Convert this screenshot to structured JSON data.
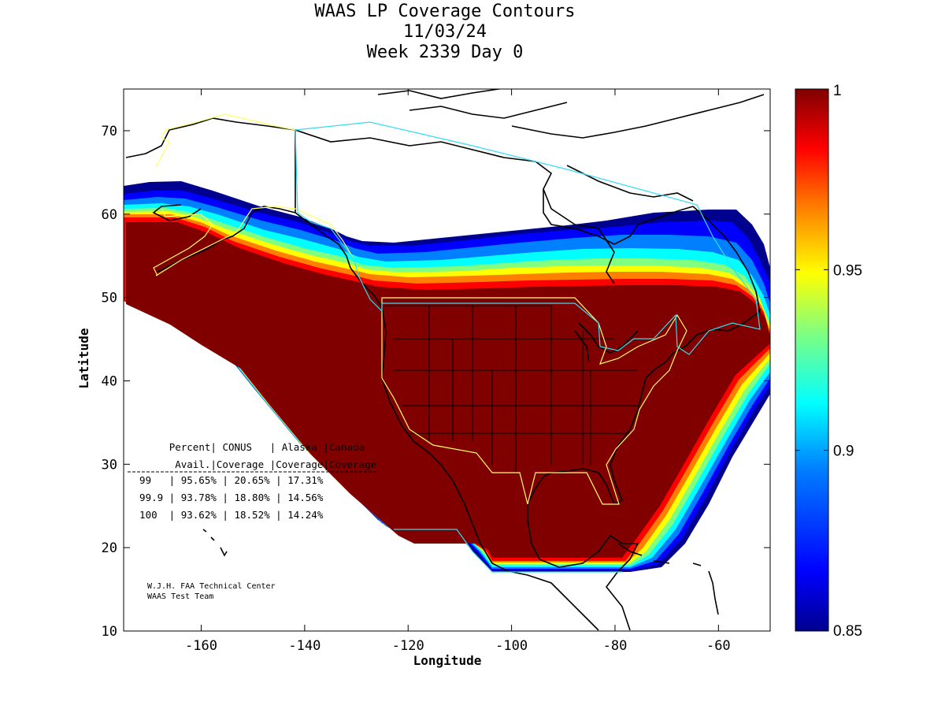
{
  "title": {
    "line1": "WAAS LP Coverage Contours",
    "line2": "11/03/24",
    "line3": "Week 2339 Day 0"
  },
  "colors": {
    "full": "#800000",
    "colormap": [
      "#00008f",
      "#0000ff",
      "#0080ff",
      "#00ffff",
      "#80ff80",
      "#ffff00",
      "#ff8000",
      "#ff0000",
      "#800000"
    ],
    "conus_outline": "#ffff66",
    "alaska_outline": "#ffff66",
    "canada_outline": "#33ddee"
  },
  "chart_data": {
    "type": "heatmap",
    "xlabel": "Longitude",
    "ylabel": "Latitude",
    "xlim": [
      -175,
      -50
    ],
    "ylim": [
      10,
      75
    ],
    "xticks": [
      -160,
      -140,
      -120,
      -100,
      -80,
      -60
    ],
    "yticks": [
      10,
      20,
      30,
      40,
      50,
      60,
      70
    ],
    "colorbar": {
      "min": 0.85,
      "max": 1,
      "ticks": [
        0.85,
        0.9,
        0.95,
        1
      ],
      "tick_labels": [
        "0.85",
        "0.9",
        "0.95",
        "1"
      ]
    },
    "table": {
      "header1": [
        "Percent",
        "CONUS",
        "Alaska",
        "Canada"
      ],
      "header2": [
        "Avail.",
        "Coverage",
        "Coverage",
        "Coverage"
      ],
      "rows": [
        {
          "avail": "99",
          "conus": "95.65%",
          "alaska": "20.65%",
          "canada": "17.31%"
        },
        {
          "avail": "99.9",
          "conus": "93.78%",
          "alaska": "18.80%",
          "canada": "14.56%"
        },
        {
          "avail": "100",
          "conus": "93.62%",
          "alaska": "18.52%",
          "canada": "14.24%"
        }
      ]
    },
    "credit": [
      "W.J.H. FAA Technical Center",
      "WAAS Test Team"
    ]
  }
}
